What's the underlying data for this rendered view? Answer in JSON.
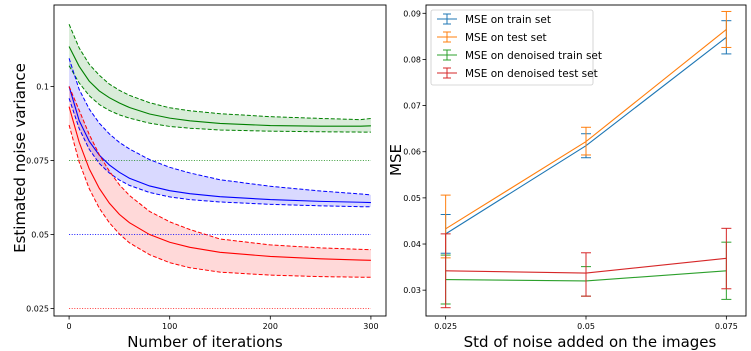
{
  "chart_data": [
    {
      "type": "line",
      "xlabel": "Number of iterations",
      "ylabel": "Estimated noise variance",
      "xlim": [
        -15,
        315
      ],
      "ylim": [
        0.0225,
        0.1275
      ],
      "x_ticks": [
        0,
        100,
        200,
        300
      ],
      "x_tick_labels": [
        "0",
        "100",
        "200",
        "300"
      ],
      "y_ticks": [
        0.025,
        0.05,
        0.075,
        0.1
      ],
      "y_tick_labels": [
        "0.025",
        "0.05",
        "0.075",
        "0.1"
      ],
      "grid": false,
      "legend": "none",
      "series": [
        {
          "color": "#008000",
          "x": [
            0,
            10,
            20,
            30,
            40,
            50,
            60,
            80,
            100,
            120,
            150,
            200,
            250,
            290,
            300
          ],
          "mean": [
            0.1135,
            0.1068,
            0.1018,
            0.0985,
            0.0962,
            0.0944,
            0.0929,
            0.0907,
            0.0893,
            0.0884,
            0.0875,
            0.0868,
            0.0866,
            0.0866,
            0.0867
          ],
          "upper": [
            0.121,
            0.113,
            0.1075,
            0.1038,
            0.1008,
            0.0987,
            0.097,
            0.0945,
            0.0928,
            0.0918,
            0.0908,
            0.0898,
            0.0892,
            0.0888,
            0.0892
          ],
          "lower": [
            0.107,
            0.1012,
            0.0969,
            0.0939,
            0.0919,
            0.0904,
            0.0893,
            0.0876,
            0.0865,
            0.0859,
            0.0853,
            0.0849,
            0.0847,
            0.0846,
            0.0846
          ],
          "true_value": 0.075
        },
        {
          "color": "#0000ff",
          "x": [
            0,
            10,
            20,
            30,
            40,
            50,
            60,
            80,
            100,
            120,
            150,
            200,
            250,
            290,
            300
          ],
          "mean": [
            0.1,
            0.0885,
            0.0815,
            0.0768,
            0.0735,
            0.071,
            0.069,
            0.0664,
            0.0648,
            0.0638,
            0.0628,
            0.0618,
            0.0612,
            0.0609,
            0.0608
          ],
          "upper": [
            0.1095,
            0.099,
            0.0924,
            0.0876,
            0.084,
            0.0811,
            0.0789,
            0.0753,
            0.0727,
            0.0708,
            0.0685,
            0.0663,
            0.0647,
            0.0637,
            0.0634
          ],
          "lower": [
            0.096,
            0.0858,
            0.0788,
            0.074,
            0.0708,
            0.0684,
            0.0666,
            0.0642,
            0.0627,
            0.0618,
            0.061,
            0.0602,
            0.0597,
            0.0594,
            0.0594
          ],
          "true_value": 0.05
        },
        {
          "color": "#ff0000",
          "x": [
            0,
            10,
            20,
            30,
            40,
            50,
            60,
            80,
            100,
            120,
            150,
            200,
            250,
            290,
            300
          ],
          "mean": [
            0.0932,
            0.0812,
            0.0722,
            0.0656,
            0.0606,
            0.0568,
            0.054,
            0.05,
            0.0474,
            0.0457,
            0.044,
            0.0426,
            0.0418,
            0.0414,
            0.0413
          ],
          "upper": [
            0.1,
            0.092,
            0.0838,
            0.077,
            0.0714,
            0.0668,
            0.0632,
            0.0578,
            0.0543,
            0.0517,
            0.0485,
            0.0465,
            0.0455,
            0.045,
            0.0449
          ],
          "lower": [
            0.087,
            0.0745,
            0.0655,
            0.0589,
            0.054,
            0.0502,
            0.0472,
            0.0432,
            0.0405,
            0.0388,
            0.0373,
            0.0363,
            0.0358,
            0.0356,
            0.0356
          ],
          "true_value": 0.025
        }
      ]
    },
    {
      "type": "line",
      "xlabel": "Std of noise added on the images",
      "ylabel": "MSE",
      "xlim": [
        0.0215,
        0.0785
      ],
      "ylim": [
        0.0244,
        0.0918
      ],
      "x_ticks": [
        0.025,
        0.05,
        0.075
      ],
      "x_tick_labels": [
        "0.025",
        "0.05",
        "0.075"
      ],
      "y_ticks": [
        0.03,
        0.04,
        0.05,
        0.06,
        0.07,
        0.08,
        0.09
      ],
      "y_tick_labels": [
        "0.03",
        "0.04",
        "0.05",
        "0.06",
        "0.07",
        "0.08",
        "0.09"
      ],
      "grid": false,
      "legend": "top-left",
      "categories": [
        0.025,
        0.05,
        0.075
      ],
      "series": [
        {
          "name": "MSE on train set",
          "color": "#1f77b4",
          "values": [
            0.0422,
            0.0613,
            0.0848
          ],
          "err_low": [
            0.038,
            0.0587,
            0.0812
          ],
          "err_high": [
            0.0464,
            0.0639,
            0.0884
          ]
        },
        {
          "name": "MSE on test set",
          "color": "#ff7f0e",
          "values": [
            0.0433,
            0.0622,
            0.0865
          ],
          "err_low": [
            0.037,
            0.0593,
            0.0826
          ],
          "err_high": [
            0.0506,
            0.0653,
            0.0904
          ]
        },
        {
          "name": "MSE on denoised train set",
          "color": "#2ca02c",
          "values": [
            0.0323,
            0.032,
            0.0342
          ],
          "err_low": [
            0.027,
            0.0287,
            0.028
          ],
          "err_high": [
            0.0376,
            0.0351,
            0.0404
          ]
        },
        {
          "name": "MSE on denoised test set",
          "color": "#d62728",
          "values": [
            0.0342,
            0.0337,
            0.0369
          ],
          "err_low": [
            0.0262,
            0.0287,
            0.0303
          ],
          "err_high": [
            0.0422,
            0.0381,
            0.0434
          ]
        }
      ]
    }
  ]
}
